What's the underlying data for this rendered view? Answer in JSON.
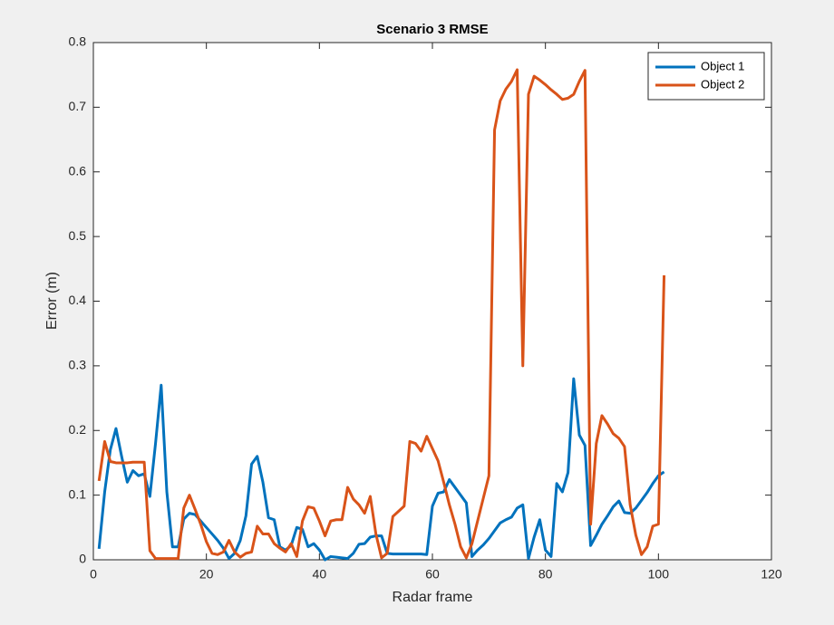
{
  "chart_data": {
    "type": "line",
    "title": "Scenario 3 RMSE",
    "x_label": "Radar frame",
    "y_label": "Error (m)",
    "x": [
      1,
      2,
      3,
      4,
      5,
      6,
      7,
      8,
      9,
      10,
      11,
      12,
      13,
      14,
      15,
      16,
      17,
      18,
      19,
      20,
      21,
      22,
      23,
      24,
      25,
      26,
      27,
      28,
      29,
      30,
      31,
      32,
      33,
      34,
      35,
      36,
      37,
      38,
      39,
      40,
      41,
      42,
      43,
      44,
      45,
      46,
      47,
      48,
      49,
      50,
      51,
      52,
      53,
      54,
      55,
      56,
      57,
      58,
      59,
      60,
      61,
      62,
      63,
      64,
      65,
      66,
      67,
      68,
      69,
      70,
      71,
      72,
      73,
      74,
      75,
      76,
      77,
      78,
      79,
      80,
      81,
      82,
      83,
      84,
      85,
      86,
      87,
      88,
      89,
      90,
      91,
      92,
      93,
      94,
      95,
      96,
      97,
      98,
      99,
      100,
      101
    ],
    "series": [
      {
        "name": "Object 1",
        "color": "#0072bd",
        "values": [
          0.017,
          0.105,
          0.17,
          0.203,
          0.16,
          0.12,
          0.138,
          0.13,
          0.133,
          0.098,
          0.18,
          0.27,
          0.105,
          0.02,
          0.02,
          0.063,
          0.072,
          0.07,
          0.06,
          0.05,
          0.04,
          0.03,
          0.018,
          0.002,
          0.01,
          0.03,
          0.068,
          0.148,
          0.16,
          0.12,
          0.065,
          0.062,
          0.02,
          0.015,
          0.022,
          0.05,
          0.047,
          0.02,
          0.025,
          0.015,
          0,
          0.005,
          0.004,
          0.003,
          0.002,
          0.01,
          0.024,
          0.025,
          0.035,
          0.037,
          0.037,
          0.01,
          0.009,
          0.009,
          0.009,
          0.009,
          0.009,
          0.009,
          0.008,
          0.083,
          0.103,
          0.105,
          0.124,
          0.112,
          0.1,
          0.088,
          0.005,
          0.015,
          0.023,
          0.033,
          0.045,
          0.057,
          0.062,
          0.066,
          0.08,
          0.085,
          0.002,
          0.035,
          0.062,
          0.015,
          0.005,
          0.118,
          0.105,
          0.135,
          0.28,
          0.193,
          0.177,
          0.022,
          0.038,
          0.055,
          0.068,
          0.082,
          0.091,
          0.073,
          0.072,
          0.08,
          0.092,
          0.104,
          0.118,
          0.13,
          0.136
        ]
      },
      {
        "name": "Object 2",
        "color": "#d95319",
        "values": [
          0.122,
          0.183,
          0.152,
          0.15,
          0.15,
          0.15,
          0.151,
          0.151,
          0.151,
          0.014,
          0.002,
          0.002,
          0.002,
          0.002,
          0.002,
          0.08,
          0.1,
          0.078,
          0.055,
          0.028,
          0.01,
          0.008,
          0.012,
          0.03,
          0.012,
          0.004,
          0.01,
          0.012,
          0.052,
          0.04,
          0.04,
          0.025,
          0.018,
          0.012,
          0.025,
          0.005,
          0.06,
          0.082,
          0.08,
          0.06,
          0.037,
          0.06,
          0.062,
          0.062,
          0.112,
          0.094,
          0.085,
          0.072,
          0.098,
          0.04,
          0.003,
          0.01,
          0.067,
          0.075,
          0.083,
          0.183,
          0.18,
          0.168,
          0.191,
          0.172,
          0.153,
          0.12,
          0.085,
          0.055,
          0.02,
          0.003,
          0.025,
          0.06,
          0.095,
          0.13,
          0.665,
          0.71,
          0.728,
          0.74,
          0.758,
          0.3,
          0.72,
          0.748,
          0.742,
          0.735,
          0.727,
          0.72,
          0.712,
          0.714,
          0.72,
          0.74,
          0.757,
          0.055,
          0.18,
          0.223,
          0.21,
          0.195,
          0.188,
          0.175,
          0.085,
          0.038,
          0.008,
          0.02,
          0.052,
          0.055,
          0.44
        ]
      }
    ],
    "xlim": [
      0,
      120
    ],
    "xticks": [
      0,
      20,
      40,
      60,
      80,
      100,
      120
    ],
    "ylim": [
      0,
      0.8
    ],
    "yticks": [
      0,
      0.1,
      0.2,
      0.3,
      0.4,
      0.5,
      0.6,
      0.7,
      0.8
    ],
    "legend": "top-right"
  }
}
